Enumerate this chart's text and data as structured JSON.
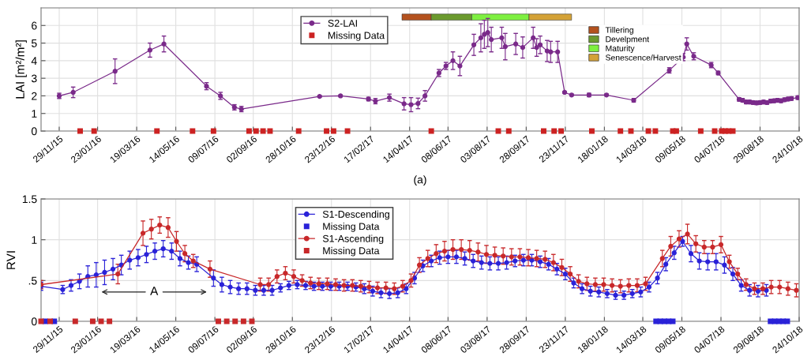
{
  "chart_data": [
    {
      "type": "line",
      "ylabel": "LAI [m²/m²]",
      "xlim": [
        "2015-11-03",
        "2018-10-24"
      ],
      "ylim": [
        0,
        7
      ],
      "yticks": [
        0,
        1,
        2,
        3,
        4,
        5,
        6
      ],
      "xticks": [
        {
          "value": "2015-11-29",
          "label": "29/11/15"
        },
        {
          "value": "2016-01-23",
          "label": "23/01/16"
        },
        {
          "value": "2016-03-19",
          "label": "19/03/16"
        },
        {
          "value": "2016-05-14",
          "label": "14/05/16"
        },
        {
          "value": "2016-07-09",
          "label": "09/07/16"
        },
        {
          "value": "2016-09-02",
          "label": "02/09/16"
        },
        {
          "value": "2016-10-28",
          "label": "28/10/16"
        },
        {
          "value": "2016-12-23",
          "label": "23/12/16"
        },
        {
          "value": "2017-02-17",
          "label": "17/02/17"
        },
        {
          "value": "2017-04-14",
          "label": "14/04/17"
        },
        {
          "value": "2017-06-08",
          "label": "08/06/17"
        },
        {
          "value": "2017-08-03",
          "label": "03/08/17"
        },
        {
          "value": "2017-09-28",
          "label": "28/09/17"
        },
        {
          "value": "2017-11-23",
          "label": "23/11/17"
        },
        {
          "value": "2018-01-18",
          "label": "18/01/18"
        },
        {
          "value": "2018-03-14",
          "label": "14/03/18"
        },
        {
          "value": "2018-05-09",
          "label": "09/05/18"
        },
        {
          "value": "2018-07-04",
          "label": "04/07/18"
        },
        {
          "value": "2018-08-29",
          "label": "29/08/18"
        },
        {
          "value": "2018-10-24",
          "label": "24/10/18"
        }
      ],
      "grid": true,
      "legend": "top",
      "annotations": [
        "(a)"
      ],
      "bands": [
        {
          "axis": "x",
          "from": "2017-04-03",
          "to": "2017-05-15",
          "label": "Tillering",
          "color": "#b4521e"
        },
        {
          "axis": "x",
          "from": "2017-05-15",
          "to": "2017-07-12",
          "label": "Develpment",
          "color": "#6b9a2e"
        },
        {
          "axis": "x",
          "from": "2017-07-12",
          "to": "2017-10-02",
          "label": "Maturity",
          "color": "#7ef040"
        },
        {
          "axis": "x",
          "from": "2017-10-02",
          "to": "2017-12-02",
          "label": "Senescence/Harvest",
          "color": "#d4a237"
        }
      ],
      "series": [
        {
          "name": "S2-LAI",
          "marker": "circle",
          "color": "#7a2a8a",
          "x": [
            "2015-11-29",
            "2015-12-19",
            "2016-02-17",
            "2016-04-07",
            "2016-04-27",
            "2016-06-27",
            "2016-07-17",
            "2016-08-06",
            "2016-08-16",
            "2016-12-06",
            "2017-01-05",
            "2017-02-14",
            "2017-02-24",
            "2017-03-16",
            "2017-04-06",
            "2017-04-16",
            "2017-04-26",
            "2017-05-06",
            "2017-05-26",
            "2017-06-05",
            "2017-06-15",
            "2017-06-25",
            "2017-07-15",
            "2017-07-25",
            "2017-07-30",
            "2017-08-04",
            "2017-08-09",
            "2017-08-24",
            "2017-08-29",
            "2017-09-13",
            "2017-09-23",
            "2017-10-08",
            "2017-10-13",
            "2017-10-18",
            "2017-10-28",
            "2017-11-02",
            "2017-11-12",
            "2017-11-22",
            "2017-12-02",
            "2017-12-27",
            "2018-01-21",
            "2018-03-01",
            "2018-04-21",
            "2018-05-11",
            "2018-05-16",
            "2018-05-26",
            "2018-06-20",
            "2018-06-30",
            "2018-07-30",
            "2018-08-04",
            "2018-08-09",
            "2018-08-14",
            "2018-08-19",
            "2018-08-24",
            "2018-08-29",
            "2018-09-03",
            "2018-09-08",
            "2018-09-13",
            "2018-09-18",
            "2018-09-23",
            "2018-09-28",
            "2018-10-03",
            "2018-10-08",
            "2018-10-13",
            "2018-10-22"
          ],
          "values": [
            2.0,
            2.2,
            3.4,
            4.6,
            4.95,
            2.55,
            2.0,
            1.35,
            1.25,
            1.97,
            2.0,
            1.82,
            1.7,
            1.9,
            1.55,
            1.5,
            1.57,
            2.0,
            3.3,
            3.7,
            4.0,
            3.7,
            4.9,
            5.3,
            5.5,
            5.6,
            5.2,
            5.3,
            4.8,
            4.95,
            4.75,
            5.3,
            4.75,
            4.9,
            4.55,
            4.5,
            4.5,
            2.2,
            2.05,
            2.05,
            2.05,
            1.75,
            3.45,
            4.2,
            4.95,
            4.25,
            3.75,
            3.3,
            1.8,
            1.75,
            1.65,
            1.65,
            1.62,
            1.6,
            1.62,
            1.65,
            1.62,
            1.7,
            1.72,
            1.75,
            1.72,
            1.78,
            1.82,
            1.85,
            1.9
          ],
          "errors": [
            0.15,
            0.3,
            0.7,
            0.4,
            0.45,
            0.2,
            0.2,
            0.15,
            0.15,
            0.05,
            0.05,
            0.1,
            0.15,
            0.2,
            0.35,
            0.4,
            0.3,
            0.3,
            0.2,
            0.2,
            0.5,
            0.55,
            0.6,
            0.8,
            0.8,
            0.8,
            0.7,
            0.6,
            0.75,
            0.6,
            0.6,
            0.6,
            0.5,
            0.5,
            0.6,
            0.6,
            0.6,
            0.05,
            0.05,
            0.1,
            0.05,
            0.1,
            0.15,
            0.2,
            0.35,
            0.2,
            0.15,
            0.1,
            0.1,
            0.1,
            0.1,
            0.1,
            0.1,
            0.1,
            0.1,
            0.1,
            0.1,
            0.1,
            0.1,
            0.1,
            0.1,
            0.1,
            0.1,
            0.1,
            0.1
          ]
        },
        {
          "name": "Missing Data",
          "type": "scatter",
          "marker": "square",
          "color": "#cc2222",
          "x": [
            "2015-12-29",
            "2016-01-18",
            "2016-04-17",
            "2016-06-07",
            "2016-07-07",
            "2016-08-27",
            "2016-09-06",
            "2016-09-16",
            "2016-09-26",
            "2016-11-06",
            "2016-12-16",
            "2016-12-26",
            "2017-01-15",
            "2017-05-15",
            "2017-08-19",
            "2017-09-03",
            "2017-10-23",
            "2017-11-07",
            "2017-11-17",
            "2017-12-31",
            "2018-02-10",
            "2018-02-25",
            "2018-03-22",
            "2018-04-01",
            "2018-04-26",
            "2018-05-01",
            "2018-06-05",
            "2018-06-25",
            "2018-07-05",
            "2018-07-10",
            "2018-07-15",
            "2018-07-21"
          ],
          "values": [
            0,
            0,
            0,
            0,
            0,
            0,
            0,
            0,
            0,
            0,
            0,
            0,
            0,
            0,
            0,
            0,
            0,
            0,
            0,
            0,
            0,
            0,
            0,
            0,
            0,
            0,
            0,
            0,
            0,
            0,
            0,
            0
          ]
        }
      ]
    },
    {
      "type": "line",
      "ylabel": "RVI",
      "xlim": [
        "2015-11-03",
        "2018-10-24"
      ],
      "ylim": [
        0,
        1.5
      ],
      "yticks": [
        0,
        {
          "value": 0.5,
          "label": ".5"
        },
        1,
        1.5
      ],
      "xticks": [
        {
          "value": "2015-11-29",
          "label": "29/11/15"
        },
        {
          "value": "2016-01-23",
          "label": "23/01/16"
        },
        {
          "value": "2016-03-19",
          "label": "19/03/16"
        },
        {
          "value": "2016-05-14",
          "label": "14/05/16"
        },
        {
          "value": "2016-07-09",
          "label": "09/07/16"
        },
        {
          "value": "2016-09-02",
          "label": "02/09/16"
        },
        {
          "value": "2016-10-28",
          "label": "28/10/16"
        },
        {
          "value": "2016-12-23",
          "label": "23/12/16"
        },
        {
          "value": "2017-02-17",
          "label": "17/02/17"
        },
        {
          "value": "2017-04-14",
          "label": "14/04/17"
        },
        {
          "value": "2017-06-08",
          "label": "08/06/17"
        },
        {
          "value": "2017-08-03",
          "label": "03/08/17"
        },
        {
          "value": "2017-09-28",
          "label": "28/09/17"
        },
        {
          "value": "2017-11-23",
          "label": "23/11/17"
        },
        {
          "value": "2018-01-18",
          "label": "18/01/18"
        },
        {
          "value": "2018-03-14",
          "label": "14/03/18"
        },
        {
          "value": "2018-05-09",
          "label": "09/05/18"
        },
        {
          "value": "2018-07-04",
          "label": "04/07/18"
        },
        {
          "value": "2018-08-29",
          "label": "29/08/18"
        },
        {
          "value": "2018-10-24",
          "label": "24/10/18"
        }
      ],
      "grid": true,
      "legend": "top",
      "annotations": [
        {
          "text": "A",
          "x": "2016-04-13",
          "y": 0.36
        }
      ],
      "series": [
        {
          "name": "S1-Descending",
          "marker": "circle",
          "color": "#2a22d8",
          "x": [
            "2015-11-03",
            "2015-12-04",
            "2015-12-16",
            "2015-12-28",
            "2016-01-09",
            "2016-01-21",
            "2016-02-02",
            "2016-02-14",
            "2016-02-26",
            "2016-03-09",
            "2016-03-21",
            "2016-04-02",
            "2016-04-14",
            "2016-04-26",
            "2016-05-08",
            "2016-05-20",
            "2016-06-01",
            "2016-06-13",
            "2016-07-07",
            "2016-07-19",
            "2016-07-31",
            "2016-08-12",
            "2016-08-24",
            "2016-09-05",
            "2016-09-17",
            "2016-09-29",
            "2016-10-11",
            "2016-10-23",
            "2016-11-04",
            "2016-11-16",
            "2016-11-28",
            "2016-12-10",
            "2016-12-22",
            "2017-01-03",
            "2017-01-15",
            "2017-01-27",
            "2017-02-08",
            "2017-02-20",
            "2017-03-04",
            "2017-03-16",
            "2017-03-28",
            "2017-04-09",
            "2017-04-21",
            "2017-05-03",
            "2017-05-15",
            "2017-05-27",
            "2017-06-08",
            "2017-06-20",
            "2017-07-02",
            "2017-07-14",
            "2017-07-26",
            "2017-08-07",
            "2017-08-19",
            "2017-08-31",
            "2017-09-12",
            "2017-09-24",
            "2017-10-06",
            "2017-10-18",
            "2017-10-30",
            "2017-11-11",
            "2017-11-23",
            "2017-12-05",
            "2017-12-17",
            "2017-12-29",
            "2018-01-10",
            "2018-01-22",
            "2018-02-03",
            "2018-02-15",
            "2018-02-27",
            "2018-03-11",
            "2018-03-23",
            "2018-04-04",
            "2018-04-16",
            "2018-04-28",
            "2018-05-10",
            "2018-05-22",
            "2018-06-03",
            "2018-06-15",
            "2018-06-27",
            "2018-07-09",
            "2018-07-21",
            "2018-08-02",
            "2018-08-14",
            "2018-08-26",
            "2018-09-07"
          ],
          "values": [
            0.43,
            0.39,
            0.44,
            0.49,
            0.55,
            0.57,
            0.6,
            0.64,
            0.69,
            0.75,
            0.78,
            0.82,
            0.86,
            0.89,
            0.86,
            0.77,
            0.72,
            0.7,
            0.53,
            0.45,
            0.42,
            0.4,
            0.4,
            0.38,
            0.38,
            0.38,
            0.41,
            0.44,
            0.45,
            0.44,
            0.43,
            0.43,
            0.43,
            0.43,
            0.43,
            0.42,
            0.4,
            0.37,
            0.35,
            0.34,
            0.35,
            0.4,
            0.53,
            0.68,
            0.74,
            0.78,
            0.79,
            0.79,
            0.77,
            0.74,
            0.72,
            0.71,
            0.71,
            0.72,
            0.74,
            0.75,
            0.75,
            0.73,
            0.7,
            0.64,
            0.58,
            0.47,
            0.4,
            0.37,
            0.36,
            0.34,
            0.32,
            0.32,
            0.34,
            0.36,
            0.42,
            0.53,
            0.7,
            0.84,
            0.98,
            0.83,
            0.74,
            0.73,
            0.73,
            0.69,
            0.58,
            0.44,
            0.38,
            0.37,
            0.38
          ],
          "errors": [
            0.05,
            0.05,
            0.07,
            0.09,
            0.13,
            0.15,
            0.15,
            0.13,
            0.12,
            0.11,
            0.1,
            0.1,
            0.1,
            0.1,
            0.1,
            0.09,
            0.08,
            0.09,
            0.1,
            0.09,
            0.08,
            0.07,
            0.07,
            0.06,
            0.06,
            0.06,
            0.05,
            0.05,
            0.05,
            0.05,
            0.05,
            0.05,
            0.05,
            0.05,
            0.05,
            0.05,
            0.06,
            0.06,
            0.06,
            0.06,
            0.06,
            0.06,
            0.07,
            0.07,
            0.07,
            0.08,
            0.08,
            0.08,
            0.08,
            0.08,
            0.08,
            0.08,
            0.08,
            0.08,
            0.07,
            0.07,
            0.07,
            0.07,
            0.07,
            0.07,
            0.07,
            0.06,
            0.06,
            0.06,
            0.06,
            0.05,
            0.05,
            0.05,
            0.05,
            0.06,
            0.06,
            0.07,
            0.08,
            0.08,
            0.06,
            0.1,
            0.1,
            0.1,
            0.1,
            0.1,
            0.08,
            0.07,
            0.07,
            0.07,
            0.07
          ]
        },
        {
          "name": "Missing Data",
          "type": "scatter",
          "marker": "square",
          "color": "#2a22d8",
          "x": [
            "2015-11-09",
            "2015-11-22",
            "2018-04-02",
            "2018-04-08",
            "2018-04-14",
            "2018-04-20",
            "2018-04-26",
            "2018-09-13",
            "2018-09-19",
            "2018-09-25",
            "2018-10-01",
            "2018-10-07"
          ],
          "values": [
            0,
            0,
            0,
            0,
            0,
            0,
            0,
            0,
            0,
            0,
            0,
            0
          ]
        },
        {
          "name": "S1-Ascending",
          "marker": "circle",
          "color": "#c8282a",
          "x": [
            "2015-11-03",
            "2016-02-21",
            "2016-03-28",
            "2016-04-09",
            "2016-04-21",
            "2016-05-03",
            "2016-05-15",
            "2016-05-27",
            "2016-06-08",
            "2016-07-02",
            "2016-09-12",
            "2016-09-24",
            "2016-10-06",
            "2016-10-18",
            "2016-10-30",
            "2016-11-11",
            "2016-11-23",
            "2016-12-05",
            "2016-12-17",
            "2016-12-29",
            "2017-01-10",
            "2017-01-22",
            "2017-02-03",
            "2017-02-15",
            "2017-02-27",
            "2017-03-11",
            "2017-03-23",
            "2017-04-04",
            "2017-04-16",
            "2017-04-28",
            "2017-05-10",
            "2017-05-22",
            "2017-06-03",
            "2017-06-15",
            "2017-06-27",
            "2017-07-09",
            "2017-07-21",
            "2017-08-02",
            "2017-08-14",
            "2017-08-26",
            "2017-09-07",
            "2017-09-19",
            "2017-10-01",
            "2017-10-13",
            "2017-10-25",
            "2017-11-06",
            "2017-11-18",
            "2017-11-30",
            "2017-12-12",
            "2017-12-24",
            "2018-01-05",
            "2018-01-17",
            "2018-01-29",
            "2018-02-10",
            "2018-02-22",
            "2018-03-06",
            "2018-03-18",
            "2018-04-11",
            "2018-04-23",
            "2018-05-05",
            "2018-05-17",
            "2018-05-29",
            "2018-06-10",
            "2018-06-22",
            "2018-07-04",
            "2018-07-16",
            "2018-07-28",
            "2018-08-09",
            "2018-08-21",
            "2018-09-02",
            "2018-09-14",
            "2018-09-26",
            "2018-10-08",
            "2018-10-20"
          ],
          "values": [
            0.45,
            0.58,
            1.08,
            1.13,
            1.18,
            1.15,
            0.98,
            0.83,
            0.74,
            0.64,
            0.45,
            0.45,
            0.55,
            0.59,
            0.55,
            0.5,
            0.47,
            0.46,
            0.46,
            0.45,
            0.44,
            0.44,
            0.43,
            0.42,
            0.41,
            0.41,
            0.4,
            0.43,
            0.5,
            0.69,
            0.77,
            0.83,
            0.86,
            0.88,
            0.88,
            0.87,
            0.85,
            0.82,
            0.81,
            0.8,
            0.79,
            0.79,
            0.78,
            0.77,
            0.76,
            0.72,
            0.66,
            0.58,
            0.49,
            0.46,
            0.45,
            0.45,
            0.44,
            0.43,
            0.44,
            0.44,
            0.46,
            0.77,
            0.92,
            1.01,
            1.07,
            0.95,
            0.91,
            0.91,
            0.94,
            0.73,
            0.58,
            0.45,
            0.4,
            0.4,
            0.42,
            0.42,
            0.4,
            0.38
          ],
          "errors": [
            0.05,
            0.12,
            0.15,
            0.12,
            0.1,
            0.12,
            0.12,
            0.1,
            0.08,
            0.1,
            0.08,
            0.08,
            0.08,
            0.08,
            0.08,
            0.07,
            0.07,
            0.07,
            0.07,
            0.07,
            0.07,
            0.07,
            0.07,
            0.07,
            0.07,
            0.07,
            0.07,
            0.07,
            0.08,
            0.09,
            0.1,
            0.11,
            0.12,
            0.12,
            0.12,
            0.12,
            0.11,
            0.11,
            0.1,
            0.1,
            0.1,
            0.1,
            0.1,
            0.1,
            0.1,
            0.1,
            0.1,
            0.09,
            0.08,
            0.08,
            0.08,
            0.08,
            0.08,
            0.08,
            0.08,
            0.08,
            0.08,
            0.1,
            0.12,
            0.1,
            0.12,
            0.1,
            0.08,
            0.08,
            0.1,
            0.08,
            0.07,
            0.07,
            0.07,
            0.07,
            0.08,
            0.08,
            0.08,
            0.08
          ]
        },
        {
          "name": "Missing Data",
          "type": "scatter",
          "marker": "square",
          "color": "#c8282a",
          "x": [
            "2015-11-03",
            "2015-11-16",
            "2015-12-22",
            "2016-01-16",
            "2016-01-28",
            "2016-02-09",
            "2016-07-14",
            "2016-07-26",
            "2016-08-07",
            "2016-08-19",
            "2016-08-31"
          ],
          "values": [
            0,
            0,
            0,
            0,
            0,
            0,
            0,
            0,
            0,
            0,
            0
          ]
        }
      ]
    }
  ]
}
